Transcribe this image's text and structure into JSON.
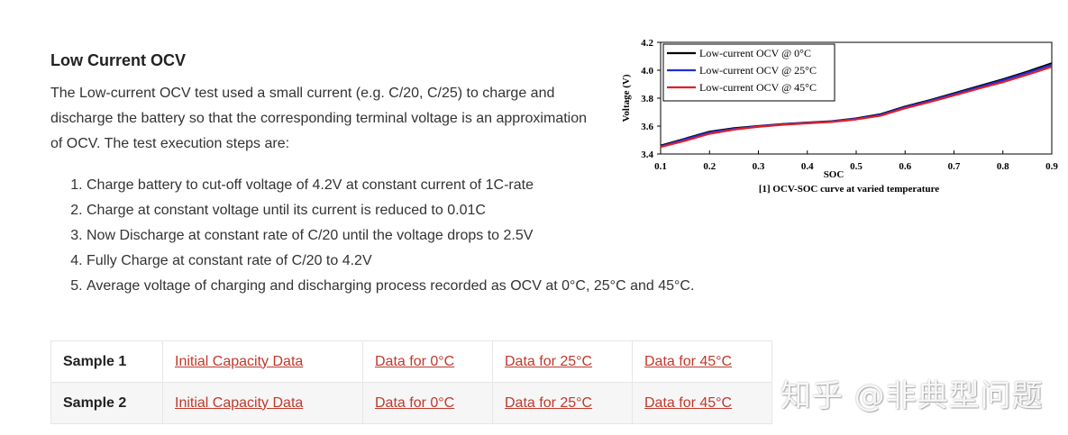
{
  "section": {
    "title": "Low Current OCV",
    "intro": "The Low-current OCV test used a small current (e.g. C/20, C/25) to charge and discharge the battery so that the corresponding terminal voltage is an approximation of OCV. The test execution steps are:",
    "steps": [
      "Charge battery to cut-off voltage of 4.2V at constant current of 1C-rate",
      "Charge at constant voltage until its current is reduced to 0.01C",
      "Now Discharge at constant rate of C/20 until the voltage drops to 2.5V",
      "Fully Charge at constant rate of C/20 to 4.2V",
      "Average voltage of charging and discharging process recorded as OCV at 0°C, 25°C and 45°C."
    ]
  },
  "chart_data": {
    "type": "line",
    "title": "",
    "caption": "[1] OCV-SOC curve at varied temperature",
    "xlabel": "SOC",
    "ylabel": "Voltage (V)",
    "xlim": [
      0.1,
      0.9
    ],
    "ylim": [
      3.4,
      4.2
    ],
    "xticks": [
      "0.1",
      "0.2",
      "0.3",
      "0.4",
      "0.5",
      "0.6",
      "0.7",
      "0.8",
      "0.9"
    ],
    "yticks": [
      "3.4",
      "3.6",
      "3.8",
      "4.0",
      "4.2"
    ],
    "grid": false,
    "legend_position": "top-left",
    "x": [
      0.1,
      0.15,
      0.2,
      0.25,
      0.3,
      0.35,
      0.4,
      0.45,
      0.5,
      0.55,
      0.6,
      0.65,
      0.7,
      0.75,
      0.8,
      0.85,
      0.9
    ],
    "series": [
      {
        "name": "Low-current OCV @ 0°C",
        "color": "#000000",
        "values": [
          3.46,
          3.51,
          3.56,
          3.585,
          3.6,
          3.615,
          3.625,
          3.635,
          3.655,
          3.685,
          3.74,
          3.785,
          3.835,
          3.885,
          3.935,
          3.99,
          4.05
        ]
      },
      {
        "name": "Low-current OCV @ 25°C",
        "color": "#1f2fd6",
        "values": [
          3.455,
          3.505,
          3.555,
          3.58,
          3.598,
          3.613,
          3.623,
          3.633,
          3.652,
          3.68,
          3.735,
          3.78,
          3.83,
          3.878,
          3.928,
          3.982,
          4.04
        ]
      },
      {
        "name": "Low-current OCV @ 45°C",
        "color": "#e0202a",
        "values": [
          3.45,
          3.495,
          3.545,
          3.575,
          3.595,
          3.61,
          3.62,
          3.63,
          3.648,
          3.675,
          3.728,
          3.772,
          3.82,
          3.868,
          3.915,
          3.968,
          4.025
        ]
      }
    ]
  },
  "table": {
    "rows": [
      {
        "sample": "Sample 1",
        "links": [
          "Initial Capacity Data",
          "Data for 0°C",
          "Data for 25°C",
          "Data for 45°C"
        ]
      },
      {
        "sample": "Sample 2",
        "links": [
          "Initial Capacity Data",
          "Data for 0°C",
          "Data for 25°C",
          "Data for 45°C"
        ]
      }
    ]
  },
  "watermark": "知乎 @非典型问题"
}
